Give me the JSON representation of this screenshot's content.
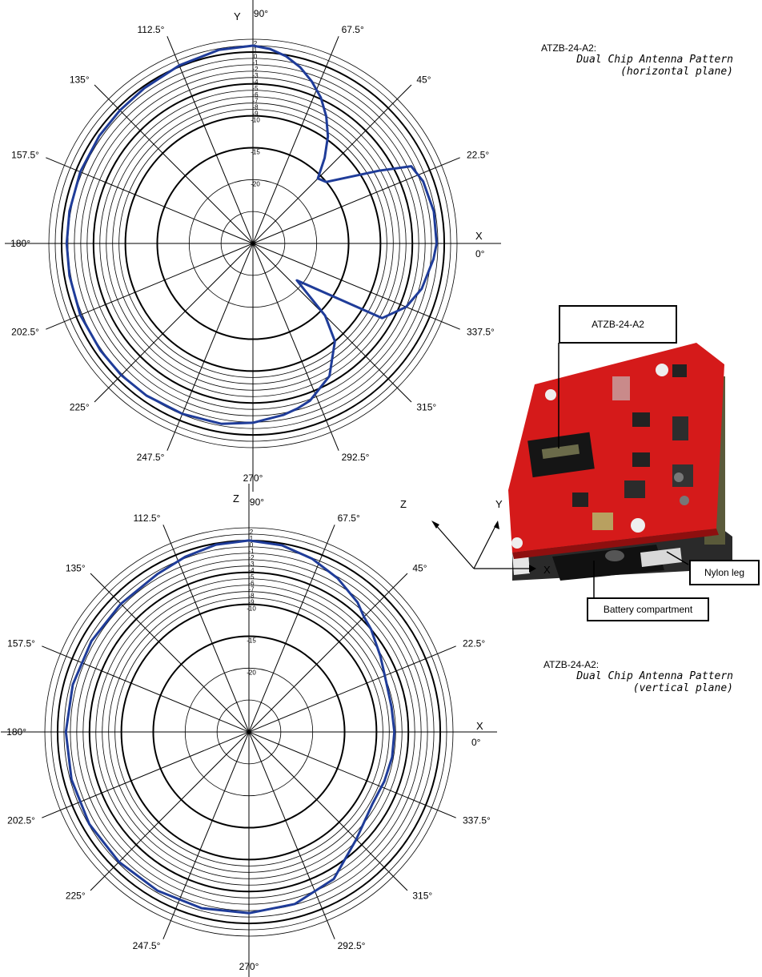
{
  "charts": [
    {
      "id": "horizontal",
      "caption": {
        "model": "ATZB-24-A2:",
        "line1": "Dual Chip Antenna Pattern",
        "line2": "(horizontal plane)"
      },
      "axis_letters": {
        "vertical": "Y",
        "horizontal": "X"
      }
    },
    {
      "id": "vertical",
      "caption": {
        "model": "ATZB-24-A2:",
        "line1": "Dual Chip Antenna  Pattern",
        "line2": "(vertical plane)"
      },
      "axis_letters": {
        "vertical": "Z",
        "horizontal": "X"
      }
    }
  ],
  "device": {
    "callouts": {
      "module": "ATZB-24-A2",
      "leg": "Nylon leg",
      "battery": "Battery compartment"
    },
    "axes": {
      "z": "Z",
      "y": "Y",
      "x": "X"
    }
  },
  "chart_data": [
    {
      "type": "polar-line",
      "angle_unit": "deg",
      "radial_unit": "dB",
      "radial_range": [
        -30,
        2
      ],
      "radial_ticks": [
        2,
        1,
        0,
        -1,
        -2,
        -3,
        -4,
        -5,
        -6,
        -7,
        -8,
        -9,
        -10,
        -15,
        -20
      ],
      "radial_tick_labels": [
        "2",
        "1",
        "0",
        "-1",
        "-2",
        "-3",
        "-4",
        "-5",
        "-6",
        "-7",
        "-8",
        "-9",
        "-10",
        "-15",
        "-20"
      ],
      "angle_ticks": [
        0,
        22.5,
        45,
        67.5,
        90,
        112.5,
        135,
        157.5,
        180,
        202.5,
        225,
        247.5,
        270,
        292.5,
        315,
        337.5
      ],
      "angle_tick_labels": [
        "0°",
        "22.5°",
        "45°",
        "67.5°",
        "90°",
        "112.5°",
        "135°",
        "157.5°",
        "180°",
        "202.5°",
        "225°",
        "247.5°",
        "270°",
        "292.5°",
        "315°",
        "337.5°"
      ],
      "series_color": "#1f3c99",
      "series": [
        {
          "angles": [
            0,
            10,
            20,
            26,
            30,
            40,
            45,
            50,
            55,
            60,
            65,
            70,
            75,
            80,
            85,
            90,
            100,
            112.5,
            125,
            135,
            145,
            157.5,
            170,
            180,
            190,
            202.5,
            215,
            225,
            235,
            247.5,
            260,
            270,
            280,
            285,
            290,
            300,
            310,
            315,
            320,
            330,
            337.5,
            345,
            355
          ],
          "values": [
            -1.2,
            -1.2,
            -1.6,
            -2.4,
            -7.2,
            -15.0,
            -15.6,
            -12.5,
            -9.5,
            -7.0,
            -4.8,
            -3.0,
            -1.4,
            -0.2,
            0.6,
            1.0,
            0.8,
            0.2,
            -0.3,
            -0.5,
            -0.6,
            -0.7,
            -0.8,
            -0.8,
            -0.8,
            -0.7,
            -0.8,
            -0.8,
            -0.9,
            -1.1,
            -1.3,
            -1.9,
            -2.7,
            -3.2,
            -3.8,
            -6.0,
            -10.0,
            -14.0,
            -21.0,
            -6.6,
            -4.0,
            -2.6,
            -1.6
          ]
        }
      ]
    },
    {
      "type": "polar-line",
      "angle_unit": "deg",
      "radial_unit": "dB",
      "radial_range": [
        -30,
        2
      ],
      "radial_ticks": [
        2,
        1,
        0,
        -1,
        -2,
        -3,
        -4,
        -5,
        -6,
        -7,
        -8,
        -9,
        -10,
        -15,
        -20
      ],
      "radial_tick_labels": [
        "2",
        "1",
        "0",
        "-1",
        "-2",
        "-3",
        "-4",
        "-5",
        "-6",
        "-7",
        "-8",
        "-9",
        "-10",
        "-15",
        "-20"
      ],
      "angle_ticks": [
        0,
        22.5,
        45,
        67.5,
        90,
        112.5,
        135,
        157.5,
        180,
        202.5,
        225,
        247.5,
        270,
        292.5,
        315,
        337.5
      ],
      "angle_tick_labels": [
        "0°",
        "22.5°",
        "45°",
        "67.5°",
        "90°",
        "112.5°",
        "135°",
        "157.5°",
        "180°",
        "202.5°",
        "225°",
        "247.5°",
        "270°",
        "292.5°",
        "315°",
        "337.5°"
      ],
      "series_color": "#1f3c99",
      "series": [
        {
          "angles": [
            0,
            10,
            20,
            30,
            40,
            45,
            50,
            60,
            70,
            80,
            90,
            100,
            110,
            120,
            135,
            150,
            165,
            180,
            195,
            210,
            225,
            240,
            255,
            270,
            285,
            300,
            315,
            330,
            340,
            350
          ],
          "values": [
            -7.2,
            -7.3,
            -7.1,
            -6.2,
            -5.0,
            -4.5,
            -3.5,
            -2.2,
            -1.1,
            -0.3,
            0.0,
            -0.2,
            -0.8,
            -1.4,
            -1.6,
            -1.5,
            -1.4,
            -1.3,
            -1.2,
            -1.1,
            -1.2,
            -1.3,
            -1.4,
            -1.6,
            -2.1,
            -3.4,
            -6.2,
            -7.6,
            -7.4,
            -7.2
          ]
        }
      ]
    }
  ]
}
